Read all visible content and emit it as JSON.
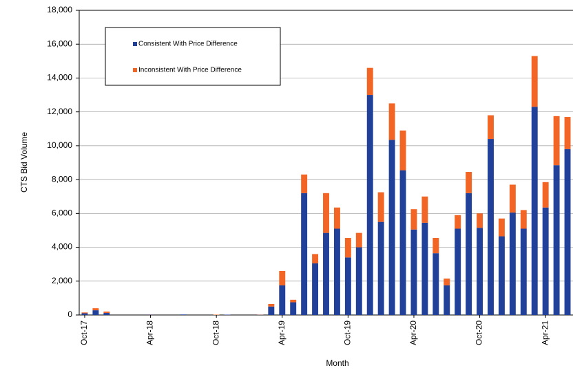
{
  "chart_data": {
    "type": "stacked_bar",
    "x_label": "Month",
    "y_label": "CTS Bid Volume",
    "categories": [
      "Oct-17",
      null,
      null,
      null,
      null,
      null,
      "Apr-18",
      null,
      null,
      null,
      null,
      null,
      "Oct-18",
      null,
      null,
      null,
      null,
      null,
      "Apr-19",
      null,
      null,
      null,
      null,
      null,
      "Oct-19",
      null,
      null,
      null,
      null,
      null,
      "Apr-20",
      null,
      null,
      null,
      null,
      null,
      "Oct-20",
      null,
      null,
      null,
      null,
      null,
      "Apr-21",
      null,
      null
    ],
    "series": [
      {
        "name": "Consistent With Price Difference",
        "color": "#21409a",
        "values": [
          100,
          280,
          120,
          0,
          0,
          0,
          20,
          0,
          0,
          30,
          0,
          0,
          0,
          20,
          0,
          0,
          10,
          500,
          1750,
          750,
          7200,
          3050,
          4850,
          5100,
          3400,
          4000,
          13000,
          5500,
          10350,
          8550,
          5050,
          5450,
          3650,
          1750,
          5100,
          7200,
          5150,
          10400,
          4650,
          6050,
          5100,
          12300,
          6350,
          8850,
          9800
        ]
      },
      {
        "name": "Inconsistent With Price Difference",
        "color": "#f26524",
        "values": [
          50,
          120,
          80,
          0,
          0,
          0,
          10,
          0,
          0,
          0,
          0,
          0,
          20,
          0,
          0,
          0,
          10,
          150,
          850,
          150,
          1100,
          550,
          2350,
          1250,
          1150,
          850,
          1600,
          1750,
          2150,
          2350,
          1200,
          1550,
          900,
          400,
          800,
          1250,
          850,
          1400,
          1050,
          1650,
          1100,
          3000,
          1500,
          2900,
          1900
        ]
      }
    ],
    "ylim": [
      0,
      18000
    ],
    "yticks": [
      0,
      {
        "value": 2000,
        "label": "2,000"
      },
      {
        "value": 4000,
        "label": "4,000"
      },
      {
        "value": 6000,
        "label": "6,000"
      },
      {
        "value": 8000,
        "label": "8,000"
      },
      {
        "value": 10000,
        "label": "10,000"
      },
      {
        "value": 12000,
        "label": "12,000"
      },
      {
        "value": 14000,
        "label": "14,000"
      },
      {
        "value": 16000,
        "label": "16,000"
      },
      {
        "value": 18000,
        "label": "18,000"
      }
    ],
    "grid": true,
    "legend": "upper left"
  }
}
